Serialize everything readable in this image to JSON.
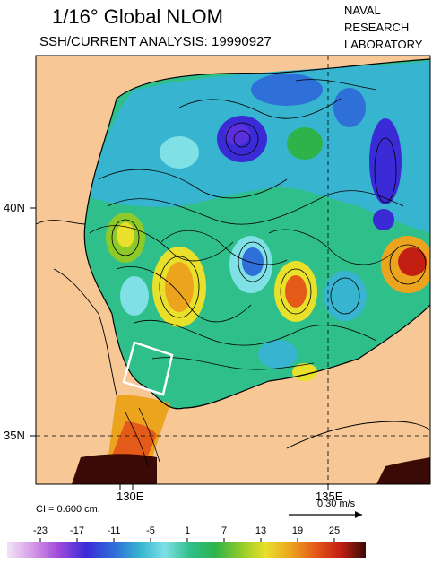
{
  "header": {
    "title": "1/16° Global NLOM",
    "subtitle": "SSH/CURRENT ANALYSIS: 19990927",
    "org_line1": "NAVAL",
    "org_line2": "RESEARCH",
    "org_line3": "LABORATORY"
  },
  "axes": {
    "lat_labels": [
      "40N",
      "35N"
    ],
    "lon_labels": [
      "130E",
      "135E"
    ]
  },
  "legend": {
    "contour_interval": "CI = 0.600 cm,",
    "current_scale": "0.30 m/s",
    "colorbar_ticks": [
      "-23",
      "-17",
      "-11",
      "-5",
      "1",
      "7",
      "13",
      "19",
      "25"
    ]
  },
  "colors": {
    "land": "#f7c796",
    "neg_deep": "#2a1ed0",
    "neg": "#29a9c9",
    "neutral": "#2fbf6a",
    "pos": "#e3d92a",
    "pos_high": "#e06a1e"
  }
}
